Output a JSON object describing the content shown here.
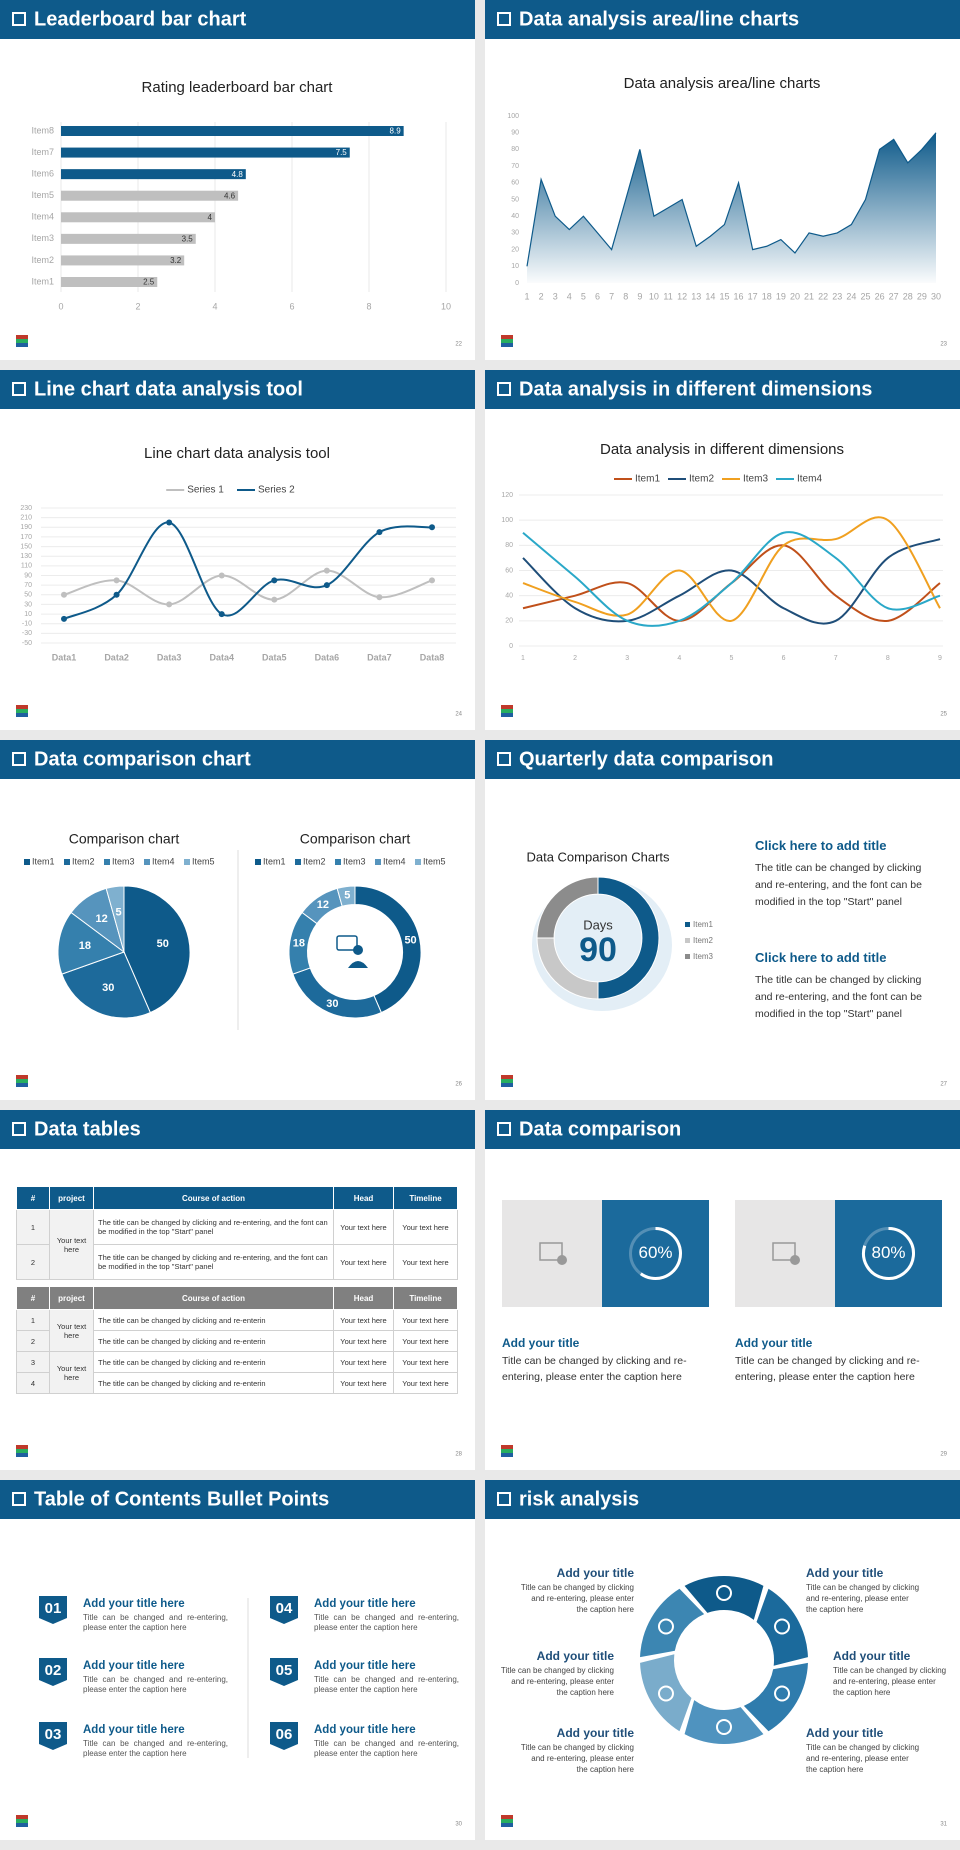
{
  "slides": [
    {
      "header": "Leaderboard bar chart",
      "page_number": 22,
      "chart_data": {
        "type": "bar",
        "title": "Rating leaderboard bar chart",
        "categories": [
          "Item1",
          "Item2",
          "Item3",
          "Item4",
          "Item5",
          "Item6",
          "Item7",
          "Item8"
        ],
        "values": [
          2.5,
          3.2,
          3.5,
          4,
          4.6,
          4.8,
          7.5,
          8.9
        ],
        "colors": [
          "#bfbfbf",
          "#bfbfbf",
          "#bfbfbf",
          "#bfbfbf",
          "#bfbfbf",
          "#0e5a8a",
          "#0e5a8a",
          "#0e5a8a"
        ],
        "xlim": [
          0,
          10
        ],
        "xticks": [
          0,
          2,
          4,
          6,
          8,
          10
        ],
        "grid": true
      }
    },
    {
      "header": "Data analysis area/line charts",
      "page_number": 23,
      "chart_data": {
        "type": "area",
        "title": "Data analysis area/line charts",
        "color": "#0e5a8a",
        "x": [
          1,
          2,
          3,
          4,
          5,
          6,
          7,
          8,
          9,
          10,
          11,
          12,
          13,
          14,
          15,
          16,
          17,
          18,
          19,
          20,
          21,
          22,
          23,
          24,
          25,
          26,
          27,
          28,
          29,
          30
        ],
        "values": [
          10,
          62,
          40,
          32,
          40,
          30,
          20,
          50,
          80,
          40,
          45,
          50,
          22,
          28,
          35,
          60,
          20,
          22,
          26,
          18,
          30,
          28,
          30,
          35,
          50,
          80,
          86,
          72,
          80,
          90
        ],
        "xlim": [
          1,
          30
        ],
        "xticks": [
          1,
          2,
          3,
          4,
          5,
          6,
          7,
          8,
          9,
          10,
          11,
          12,
          13,
          14,
          15,
          16,
          17,
          18,
          19,
          20,
          21,
          22,
          23,
          24,
          25,
          26,
          27,
          28,
          29,
          30
        ],
        "ylim": [
          0,
          100
        ],
        "yticks": [
          0,
          10,
          20,
          30,
          40,
          50,
          60,
          70,
          80,
          90,
          100
        ]
      }
    },
    {
      "header": "Line chart data analysis tool",
      "page_number": 24,
      "chart_data": {
        "type": "line",
        "smooth": true,
        "markers": true,
        "title": "Line chart data analysis tool",
        "legend": "top",
        "grid": true,
        "categories": [
          "Data1",
          "Data2",
          "Data3",
          "Data4",
          "Data5",
          "Data6",
          "Data7",
          "Data8"
        ],
        "series": [
          {
            "name": "Series 1",
            "color": "#bfbfbf",
            "values": [
              50,
              80,
              30,
              90,
              40,
              100,
              45,
              80
            ]
          },
          {
            "name": "Series 2",
            "color": "#0e5a8a",
            "values": [
              0,
              50,
              200,
              10,
              80,
              70,
              180,
              190
            ]
          }
        ],
        "ylim": [
          -50,
          230
        ],
        "yticks": [
          -50,
          -30,
          -10,
          10,
          30,
          50,
          70,
          90,
          110,
          130,
          150,
          170,
          190,
          210,
          230
        ]
      }
    },
    {
      "header": "Data analysis in different dimensions",
      "page_number": 25,
      "chart_data": {
        "type": "line",
        "smooth": true,
        "markers": false,
        "title": "Data analysis in different dimensions",
        "legend": "top",
        "grid": true,
        "x": [
          1,
          2,
          3,
          4,
          5,
          6,
          7,
          8,
          9
        ],
        "xlim": [
          1,
          9
        ],
        "xticks": [
          1,
          2,
          3,
          4,
          5,
          6,
          7,
          8,
          9
        ],
        "series": [
          {
            "name": "Item1",
            "color": "#c0501a",
            "values": [
              30,
              40,
              50,
              20,
              50,
              80,
              40,
              20,
              50
            ]
          },
          {
            "name": "Item2",
            "color": "#1f4e79",
            "values": [
              70,
              30,
              20,
              40,
              60,
              30,
              20,
              70,
              85
            ]
          },
          {
            "name": "Item3",
            "color": "#f0a020",
            "values": [
              50,
              35,
              25,
              60,
              20,
              80,
              85,
              100,
              30
            ]
          },
          {
            "name": "Item4",
            "color": "#2aa8c8",
            "values": [
              90,
              55,
              20,
              20,
              50,
              90,
              70,
              30,
              40
            ]
          }
        ],
        "ylim": [
          0,
          120
        ],
        "yticks": [
          0,
          20,
          40,
          60,
          80,
          100,
          120
        ]
      }
    },
    {
      "header": "Data comparison chart",
      "page_number": 26,
      "chart_data": [
        {
          "type": "pie",
          "title": "Comparison chart",
          "legend": "top",
          "categories": [
            "Item1",
            "Item2",
            "Item3",
            "Item4",
            "Item5"
          ],
          "values": [
            50,
            30,
            18,
            12,
            5
          ],
          "colors": [
            "#0e5a8a",
            "#1d6a9b",
            "#3580ad",
            "#5694bd",
            "#7fb0cf"
          ]
        },
        {
          "type": "donut",
          "title": "Comparison chart",
          "legend": "top",
          "categories": [
            "Item1",
            "Item2",
            "Item3",
            "Item4",
            "Item5"
          ],
          "values": [
            50,
            30,
            18,
            12,
            5
          ],
          "colors": [
            "#0e5a8a",
            "#1d6a9b",
            "#3580ad",
            "#5694bd",
            "#7fb0cf"
          ]
        }
      ]
    },
    {
      "header": "Quarterly data comparison",
      "page_number": 27,
      "chart_data": {
        "type": "donut",
        "title": "Data Comparison Charts",
        "center_label": "Days",
        "center_value": 90,
        "legend": "right",
        "categories": [
          "Item1",
          "Item2",
          "Item3"
        ],
        "values": [
          50,
          25,
          25
        ],
        "colors": [
          "#0e5a8a",
          "#c8c8c8",
          "#8c8c8c"
        ]
      },
      "blocks": [
        {
          "title": "Click here to add title",
          "text": "The title can be changed by clicking and re-entering, and the font can be modified in the top \"Start\" panel"
        },
        {
          "title": "Click here to add title",
          "text": "The title can be changed by clicking and re-entering, and the font can be modified in the top \"Start\" panel"
        }
      ]
    },
    {
      "header": "Data tables",
      "page_number": 28,
      "tables": [
        {
          "columns": [
            "#",
            "project",
            "Course of action",
            "Head",
            "Timeline"
          ],
          "groups": [
            {
              "project": "Your text here",
              "rows": [
                [
                  1,
                  "The title can be changed by clicking and re-entering, and the font can be modified in the top \"Start\" panel",
                  "Your text here",
                  "Your text here"
                ],
                [
                  2,
                  "The title can be changed by clicking and re-entering, and the font can be modified in the top \"Start\" panel",
                  "Your text here",
                  "Your text here"
                ]
              ]
            }
          ]
        },
        {
          "columns": [
            "#",
            "project",
            "Course of action",
            "Head",
            "Timeline"
          ],
          "groups": [
            {
              "project": "Your text here",
              "rows": [
                [
                  1,
                  "The title can be changed by clicking and re-enterin",
                  "Your text here",
                  "Your text here"
                ],
                [
                  2,
                  "The title can be changed by clicking and re-enterin",
                  "Your text here",
                  "Your text here"
                ]
              ]
            },
            {
              "project": "Your text here",
              "rows": [
                [
                  3,
                  "The title can be changed by clicking and re-enterin",
                  "Your text here",
                  "Your text here"
                ],
                [
                  4,
                  "The title can be changed by clicking and re-enterin",
                  "Your text here",
                  "Your text here"
                ]
              ]
            }
          ]
        }
      ]
    },
    {
      "header": "Data comparison",
      "page_number": 29,
      "progress": [
        {
          "value": 60,
          "label": "60%",
          "title": "Add your title",
          "text": "Title can be changed by clicking and re-entering, please enter the caption here"
        },
        {
          "value": 80,
          "label": "80%",
          "title": "Add your title",
          "text": "Title can be changed by clicking and re-entering, please enter the caption here"
        }
      ]
    },
    {
      "header": "Table of Contents Bullet Points",
      "page_number": 30,
      "toc": [
        {
          "number": "01",
          "title": "Add your title here",
          "text": "Title can be changed and re-entering, please enter the caption here"
        },
        {
          "number": "02",
          "title": "Add your title here",
          "text": "Title can be changed and re-entering, please enter the caption here"
        },
        {
          "number": "03",
          "title": "Add your title here",
          "text": "Title can be changed and re-entering, please enter the caption here"
        },
        {
          "number": "04",
          "title": "Add your title here",
          "text": "Title can be changed and re-entering, please enter the caption here"
        },
        {
          "number": "05",
          "title": "Add your title here",
          "text": "Title can be changed and re-entering, please enter the caption here"
        },
        {
          "number": "06",
          "title": "Add your title here",
          "text": "Title can be changed and re-entering, please enter the caption here"
        }
      ]
    },
    {
      "header": "risk analysis",
      "page_number": 31,
      "risks": [
        {
          "title": "Add your title",
          "text": "Title can be changed by clicking and re-entering, please enter the caption here"
        },
        {
          "title": "Add your title",
          "text": "Title can be changed by clicking and re-entering, please enter the caption here"
        },
        {
          "title": "Add your title",
          "text": "Title can be changed by clicking and re-entering, please enter the caption here"
        },
        {
          "title": "Add your title",
          "text": "Title can be changed by clicking and re-entering, please enter the caption here"
        },
        {
          "title": "Add your title",
          "text": "Title can be changed by clicking and re-entering, please enter the caption here"
        },
        {
          "title": "Add your title",
          "text": "Title can be changed by clicking and re-entering, please enter the caption here"
        }
      ]
    }
  ]
}
